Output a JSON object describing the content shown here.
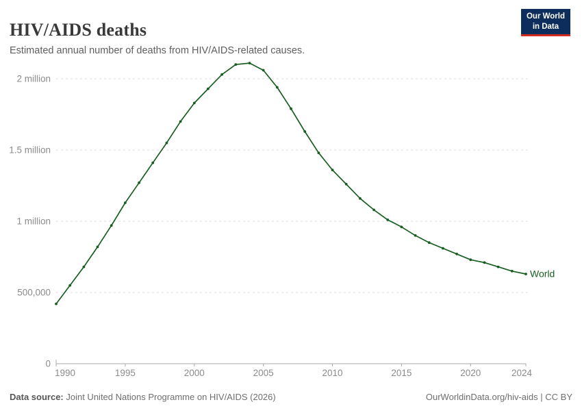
{
  "header": {
    "title": "HIV/AIDS deaths",
    "subtitle": "Estimated annual number of deaths from HIV/AIDS-related causes."
  },
  "logo": {
    "line1": "Our World",
    "line2": "in Data",
    "background_color": "#0D2E5C",
    "accent_color": "#D42B21"
  },
  "chart_data": {
    "type": "line",
    "title": "HIV/AIDS deaths",
    "subtitle": "Estimated annual number of deaths from HIV/AIDS-related causes.",
    "xlabel": "",
    "ylabel": "",
    "x": [
      1990,
      1991,
      1992,
      1993,
      1994,
      1995,
      1996,
      1997,
      1998,
      1999,
      2000,
      2001,
      2002,
      2003,
      2004,
      2005,
      2006,
      2007,
      2008,
      2009,
      2010,
      2011,
      2012,
      2013,
      2014,
      2015,
      2016,
      2017,
      2018,
      2019,
      2020,
      2021,
      2022,
      2023,
      2024
    ],
    "series": [
      {
        "name": "World",
        "color": "#185E21",
        "values": [
          420000,
          550000,
          680000,
          820000,
          970000,
          1130000,
          1270000,
          1410000,
          1550000,
          1700000,
          1830000,
          1930000,
          2030000,
          2100000,
          2110000,
          2060000,
          1940000,
          1790000,
          1630000,
          1480000,
          1360000,
          1260000,
          1160000,
          1080000,
          1010000,
          960000,
          900000,
          850000,
          810000,
          770000,
          730000,
          710000,
          680000,
          650000,
          630000
        ]
      }
    ],
    "xlim": [
      1990,
      2024
    ],
    "ylim": [
      0,
      2200000
    ],
    "xticks": [
      1990,
      1995,
      2000,
      2005,
      2010,
      2015,
      2020,
      2024
    ],
    "yticks": [
      {
        "value": 0,
        "label": "0"
      },
      {
        "value": 500000,
        "label": "500,000"
      },
      {
        "value": 1000000,
        "label": "1 million"
      },
      {
        "value": 1500000,
        "label": "1.5 million"
      },
      {
        "value": 2000000,
        "label": "2 million"
      }
    ],
    "grid": "horizontal-dashed",
    "legend": "inline-end-label",
    "markers": true,
    "colors": {
      "grid": "#DCDCDC",
      "axis": "#A8A8A8",
      "axis_text": "#8B8B8B"
    }
  },
  "footer": {
    "source_label": "Data source:",
    "source_text": " Joint United Nations Programme on HIV/AIDS (2026)",
    "right_text": "OurWorldinData.org/hiv-aids | CC BY"
  }
}
